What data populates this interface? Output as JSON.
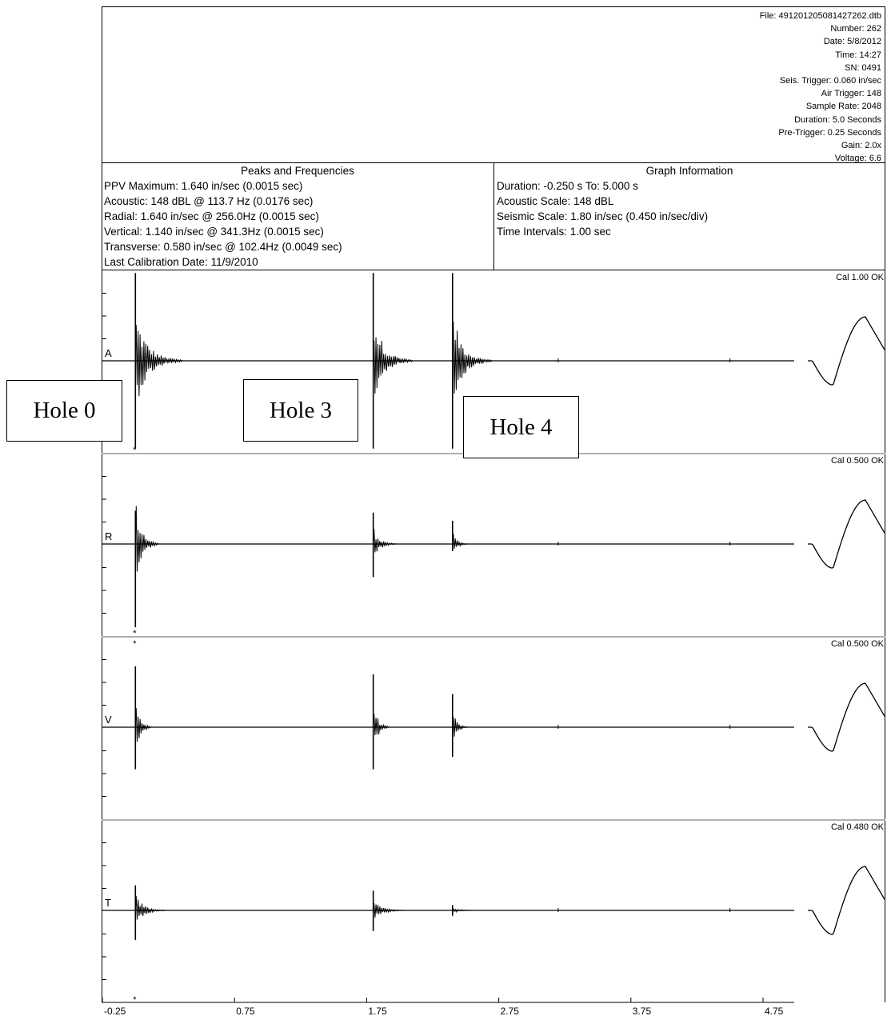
{
  "file_info": [
    "File: 491201205081427262.dtb",
    "Number: 262",
    "Date: 5/8/2012",
    "Time: 14:27",
    "SN: 0491",
    "Seis. Trigger: 0.060 in/sec",
    "Air Trigger: 148",
    "Sample Rate: 2048",
    "Duration: 5.0 Seconds",
    "Pre-Trigger: 0.25 Seconds",
    "Gain: 2.0x",
    "Voltage: 6.6"
  ],
  "peaks": {
    "title": "Peaks and Frequencies",
    "lines": [
      "PPV Maximum: 1.640 in/sec (0.0015 sec)",
      "Acoustic: 148 dBL  @ 113.7 Hz (0.0176 sec)",
      "Radial: 1.640 in/sec @ 256.0Hz (0.0015 sec)",
      "Vertical: 1.140 in/sec @ 341.3Hz (0.0015 sec)",
      "Transverse: 0.580 in/sec @ 102.4Hz (0.0049 sec)",
      "Last Calibration Date: 11/9/2010"
    ]
  },
  "graph_info": {
    "title": "Graph Information",
    "lines": [
      "Duration: -0.250 s To: 5.000 s",
      "Acoustic Scale: 148 dBL",
      "Seismic Scale: 1.80 in/sec (0.450 in/sec/div)",
      "Time Intervals: 1.00 sec"
    ]
  },
  "annotations": [
    {
      "label": "Hole 0"
    },
    {
      "label": "Hole 3"
    },
    {
      "label": "Hole 4"
    }
  ],
  "chart_data": {
    "type": "line",
    "xlim": [
      -0.25,
      5.0
    ],
    "x_ticks": [
      "-0.25",
      "0.75",
      "1.75",
      "2.75",
      "3.75",
      "4.75"
    ],
    "events_sec": [
      0.0,
      1.8,
      2.4
    ],
    "channels": [
      {
        "name": "A",
        "cal": "Cal 1.00 OK",
        "marker": "*",
        "marker_side": "below",
        "peaks": [
          {
            "t": 0.0,
            "up": 0.98,
            "down": 0.98,
            "decay": 0.06
          },
          {
            "t": 1.8,
            "up": 0.98,
            "down": 0.98,
            "decay": 0.05
          },
          {
            "t": 2.4,
            "up": 0.98,
            "down": 0.98,
            "decay": 0.05
          }
        ]
      },
      {
        "name": "R",
        "cal": "Cal 0.500 OK",
        "marker": "*",
        "marker_side": "below",
        "peaks": [
          {
            "t": 0.0,
            "up": 0.37,
            "down": 0.93,
            "decay": 0.03
          },
          {
            "t": 1.8,
            "up": 0.35,
            "down": 0.37,
            "decay": 0.03
          },
          {
            "t": 2.4,
            "up": 0.26,
            "down": 0.08,
            "decay": 0.02
          }
        ]
      },
      {
        "name": "V",
        "cal": "Cal 0.500 OK",
        "marker": "*",
        "marker_side": "above",
        "peaks": [
          {
            "t": 0.0,
            "up": 0.68,
            "down": 0.47,
            "decay": 0.02
          },
          {
            "t": 1.8,
            "up": 0.59,
            "down": 0.47,
            "decay": 0.02
          },
          {
            "t": 2.4,
            "up": 0.37,
            "down": 0.33,
            "decay": 0.02
          }
        ]
      },
      {
        "name": "T",
        "cal": "Cal 0.480 OK",
        "marker": "*",
        "marker_side": "below",
        "peaks": [
          {
            "t": 0.0,
            "up": 0.28,
            "down": 0.33,
            "decay": 0.04
          },
          {
            "t": 1.8,
            "up": 0.22,
            "down": 0.23,
            "decay": 0.04
          },
          {
            "t": 2.4,
            "up": 0.06,
            "down": 0.06,
            "decay": 0.03
          }
        ]
      }
    ],
    "colors": {
      "trace": "#000000",
      "divider": "#b0b0b0"
    }
  }
}
